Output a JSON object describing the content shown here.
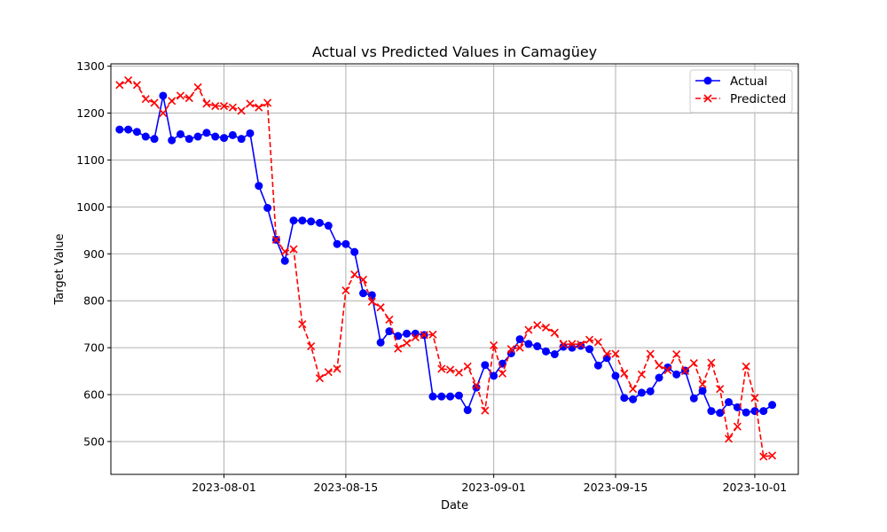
{
  "chart_data": {
    "type": "line",
    "title": "Actual vs Predicted Values in Camagüey",
    "xlabel": "Date",
    "ylabel": "Target Value",
    "x_start_date": "2023-07-20",
    "x_step_days": 1,
    "xlim": [
      "2023-07-19",
      "2023-10-06"
    ],
    "ylim": [
      430,
      1305
    ],
    "x_ticks": [
      {
        "date": "2023-08-01",
        "label": "2023-08-01"
      },
      {
        "date": "2023-08-15",
        "label": "2023-08-15"
      },
      {
        "date": "2023-09-01",
        "label": "2023-09-01"
      },
      {
        "date": "2023-09-15",
        "label": "2023-09-15"
      },
      {
        "date": "2023-10-01",
        "label": "2023-10-01"
      }
    ],
    "y_ticks": [
      500,
      600,
      700,
      800,
      900,
      1000,
      1100,
      1200,
      1300
    ],
    "grid": true,
    "legend_position": "top-right",
    "series": [
      {
        "name": "Actual",
        "color": "#0000ff",
        "style": "solid",
        "marker": "circle",
        "values": [
          1165,
          1165,
          1160,
          1150,
          1145,
          1237,
          1142,
          1155,
          1145,
          1150,
          1158,
          1150,
          1147,
          1153,
          1145,
          1157,
          1045,
          998,
          930,
          885,
          971,
          971,
          969,
          966,
          960,
          921,
          921,
          904,
          816,
          812,
          711,
          735,
          725,
          730,
          730,
          727,
          596,
          596,
          596,
          598,
          567,
          615,
          663,
          640,
          666,
          688,
          718,
          708,
          703,
          692,
          686,
          702,
          700,
          704,
          697,
          662,
          678,
          640,
          593,
          590,
          604,
          607,
          636,
          658,
          643,
          651,
          592,
          608,
          565,
          561,
          584,
          573,
          562,
          565,
          565,
          578
        ]
      },
      {
        "name": "Predicted",
        "color": "#ff0000",
        "style": "dashed",
        "marker": "x",
        "values": [
          1260,
          1270,
          1260,
          1230,
          1222,
          1200,
          1226,
          1237,
          1232,
          1255,
          1220,
          1215,
          1215,
          1212,
          1205,
          1220,
          1212,
          1222,
          930,
          905,
          910,
          750,
          703,
          635,
          648,
          655,
          822,
          856,
          845,
          798,
          786,
          760,
          698,
          710,
          722,
          727,
          728,
          655,
          653,
          647,
          660,
          620,
          566,
          705,
          645,
          697,
          700,
          738,
          748,
          743,
          732,
          707,
          708,
          707,
          717,
          712,
          687,
          687,
          645,
          612,
          643,
          687,
          662,
          652,
          686,
          650,
          667,
          622,
          668,
          612,
          506,
          532,
          660,
          593,
          468,
          470
        ]
      }
    ]
  }
}
